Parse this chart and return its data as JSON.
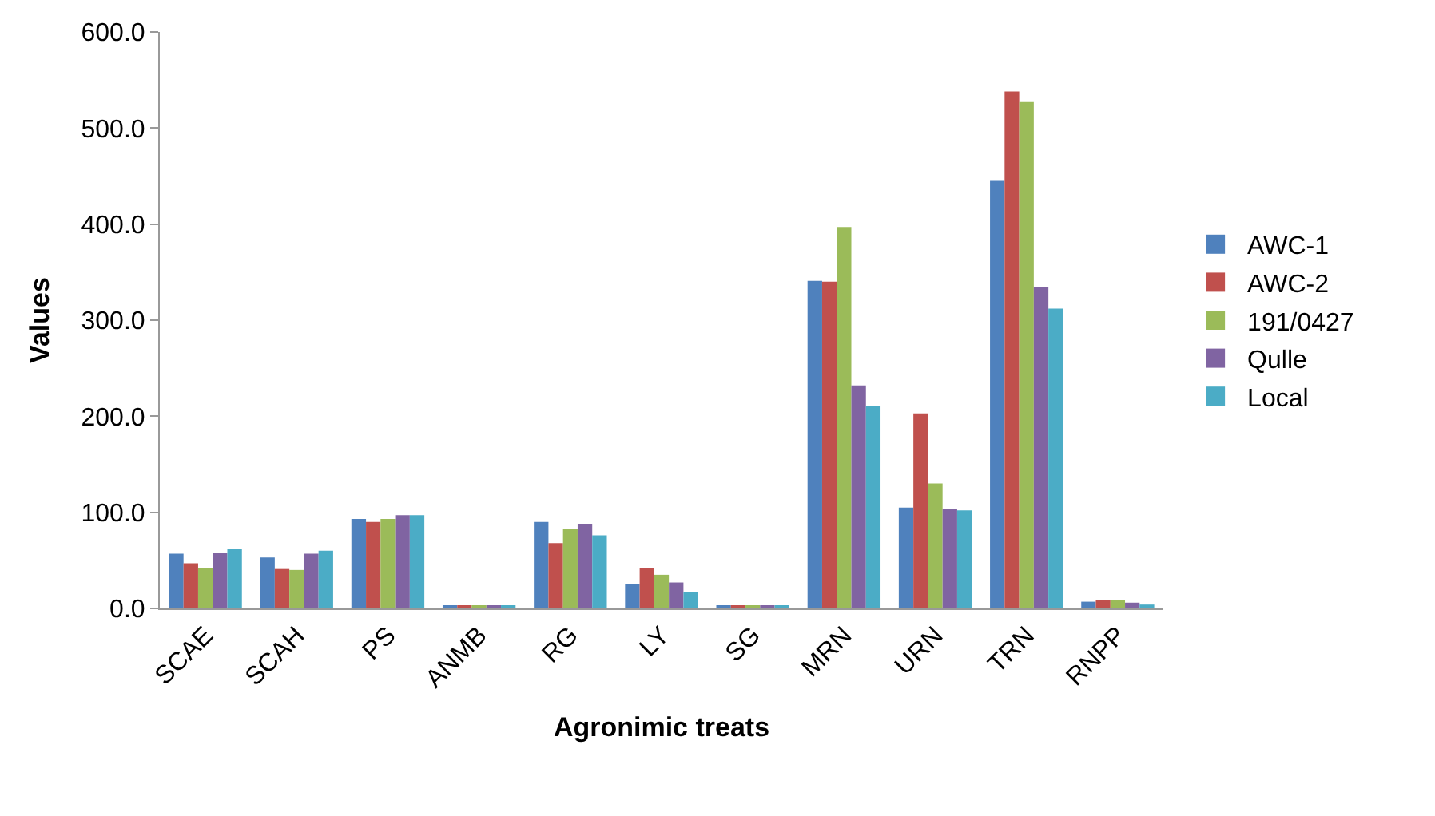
{
  "chart_data": {
    "type": "bar",
    "xlabel": "Agronimic treats",
    "ylabel": "Values",
    "categories": [
      "SCAE",
      "SCAH",
      "PS",
      "ANMB",
      "RG",
      "LY",
      "SG",
      "MRN",
      "URN",
      "TRN",
      "RNPP"
    ],
    "series": [
      {
        "name": "AWC-1",
        "color": "#4f81bd",
        "values": [
          57,
          53,
          93,
          3,
          90,
          25,
          3,
          341,
          105,
          445,
          7
        ]
      },
      {
        "name": "AWC-2",
        "color": "#c0504d",
        "values": [
          47,
          41,
          90,
          3,
          68,
          42,
          3,
          340,
          203,
          538,
          9
        ]
      },
      {
        "name": "191/0427",
        "color": "#9bbb59",
        "values": [
          42,
          40,
          93,
          3,
          83,
          35,
          3,
          397,
          130,
          527,
          9
        ]
      },
      {
        "name": "Qulle",
        "color": "#8064a2",
        "values": [
          58,
          57,
          97,
          3,
          88,
          27,
          3,
          232,
          103,
          335,
          6
        ]
      },
      {
        "name": "Local",
        "color": "#4bacc6",
        "values": [
          62,
          60,
          97,
          3,
          76,
          17,
          3,
          211,
          102,
          312,
          4
        ]
      }
    ],
    "ylim": [
      0,
      600
    ],
    "yticks": [
      {
        "value": 0,
        "label": "0.0"
      },
      {
        "value": 100,
        "label": "100.0"
      },
      {
        "value": 200,
        "label": "200.0"
      },
      {
        "value": 300,
        "label": "300.0"
      },
      {
        "value": 400,
        "label": "400.0"
      },
      {
        "value": 500,
        "label": "500.0"
      },
      {
        "value": 600,
        "label": "600.0"
      }
    ],
    "legend": "right"
  }
}
